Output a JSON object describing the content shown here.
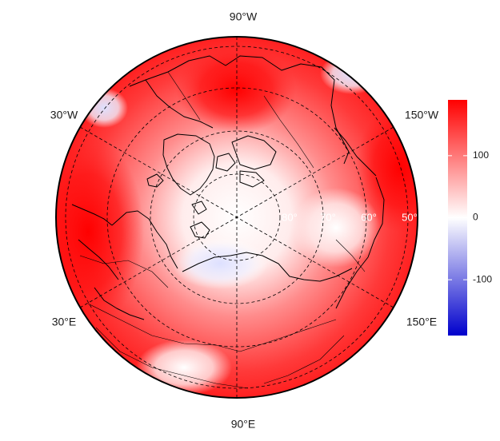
{
  "map": {
    "projection": "polar stereographic (north pole)",
    "longitude_labels": {
      "top": "90°W",
      "upper_left": "30°W",
      "upper_right": "150°W",
      "lower_left": "30°E",
      "lower_right": "150°E",
      "bottom": "90°E"
    },
    "latitude_labels": [
      "80°",
      "70°",
      "60°",
      "50°"
    ],
    "graticule": "dashed",
    "coastlines": true,
    "country_borders": true,
    "field_colors": {
      "max": "#ff0000",
      "zero": "#ffffff",
      "min": "#0000cc"
    }
  },
  "colorbar": {
    "ticks": [
      "100",
      "0",
      "-100"
    ],
    "range": [
      -190,
      190
    ],
    "colors": [
      "#0000cc",
      "#ffffff",
      "#ff0000"
    ]
  }
}
